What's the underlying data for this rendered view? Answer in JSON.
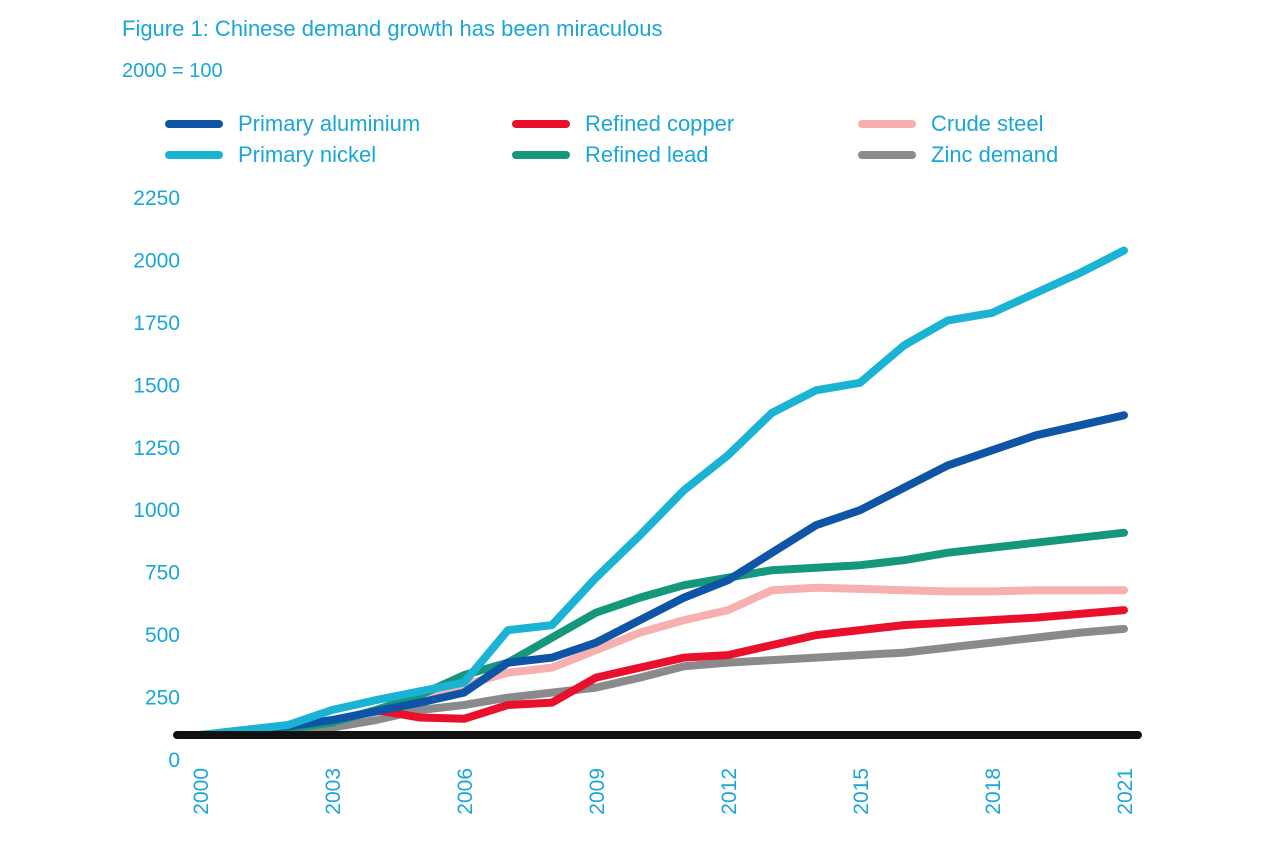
{
  "title": "Figure 1: Chinese demand growth has been miraculous",
  "subtitle": "2000 = 100",
  "chart_data": {
    "type": "line",
    "title": "Figure 1: Chinese demand growth has been miraculous",
    "subtitle": "2000 = 100",
    "xlabel": "",
    "ylabel": "",
    "ylim": [
      0,
      2250
    ],
    "yticks": [
      "0",
      "250",
      "500",
      "750",
      "1000",
      "1250",
      "1500",
      "1750",
      "2000",
      "2250"
    ],
    "xticks": [
      "2000",
      "2003",
      "2006",
      "2009",
      "2012",
      "2015",
      "2018",
      "2021"
    ],
    "baseline": {
      "value": 100,
      "color": "#111111"
    },
    "series": [
      {
        "name": "Primary aluminium",
        "color": "#0e55a7",
        "x": [
          2000,
          2001,
          2002,
          2003,
          2004,
          2005,
          2006,
          2007,
          2008,
          2009,
          2010,
          2011,
          2012,
          2013,
          2014,
          2015,
          2016,
          2017,
          2018,
          2019,
          2020,
          2021
        ],
        "values": [
          100,
          115,
          135,
          160,
          195,
          230,
          270,
          390,
          410,
          470,
          560,
          650,
          720,
          830,
          940,
          1000,
          1090,
          1180,
          1240,
          1300,
          1340,
          1380
        ]
      },
      {
        "name": "Refined copper",
        "color": "#e8102a",
        "x": [
          2004,
          2005,
          2006,
          2007,
          2008,
          2009,
          2010,
          2011,
          2012,
          2013,
          2014,
          2015,
          2016,
          2017,
          2018,
          2019,
          2020,
          2021
        ],
        "values": [
          200,
          170,
          165,
          220,
          230,
          330,
          370,
          410,
          420,
          460,
          500,
          520,
          540,
          550,
          560,
          570,
          585,
          600
        ]
      },
      {
        "name": "Crude steel",
        "color": "#f7b0b0",
        "x": [
          2004,
          2005,
          2006,
          2007,
          2008,
          2009,
          2010,
          2011,
          2012,
          2013,
          2014,
          2015,
          2016,
          2017,
          2018,
          2019,
          2020,
          2021
        ],
        "values": [
          190,
          250,
          300,
          350,
          370,
          440,
          510,
          560,
          600,
          680,
          690,
          685,
          680,
          675,
          675,
          680,
          680,
          680
        ]
      },
      {
        "name": "Primary nickel",
        "color": "#1ab3d4",
        "x": [
          2000,
          2001,
          2002,
          2003,
          2004,
          2005,
          2006,
          2007,
          2008,
          2009,
          2010,
          2011,
          2012,
          2013,
          2014,
          2015,
          2016,
          2017,
          2018,
          2019,
          2020,
          2021
        ],
        "values": [
          100,
          120,
          140,
          200,
          240,
          275,
          310,
          520,
          540,
          730,
          900,
          1080,
          1220,
          1390,
          1480,
          1510,
          1660,
          1760,
          1790,
          1870,
          1950,
          2040
        ]
      },
      {
        "name": "Refined lead",
        "color": "#14977a",
        "x": [
          2000,
          2001,
          2002,
          2003,
          2004,
          2005,
          2006,
          2007,
          2008,
          2009,
          2010,
          2011,
          2012,
          2013,
          2014,
          2015,
          2016,
          2017,
          2018,
          2019,
          2020,
          2021
        ],
        "values": [
          100,
          110,
          125,
          150,
          200,
          260,
          340,
          390,
          490,
          590,
          650,
          700,
          730,
          760,
          770,
          780,
          800,
          830,
          850,
          870,
          890,
          910
        ]
      },
      {
        "name": "Zinc demand",
        "color": "#8a8a8c",
        "x": [
          2002,
          2003,
          2004,
          2005,
          2006,
          2007,
          2008,
          2009,
          2010,
          2011,
          2012,
          2013,
          2014,
          2015,
          2016,
          2017,
          2018,
          2019,
          2020,
          2021
        ],
        "values": [
          100,
          130,
          160,
          200,
          220,
          250,
          270,
          290,
          330,
          375,
          390,
          400,
          410,
          420,
          430,
          450,
          470,
          490,
          510,
          525
        ]
      }
    ]
  }
}
